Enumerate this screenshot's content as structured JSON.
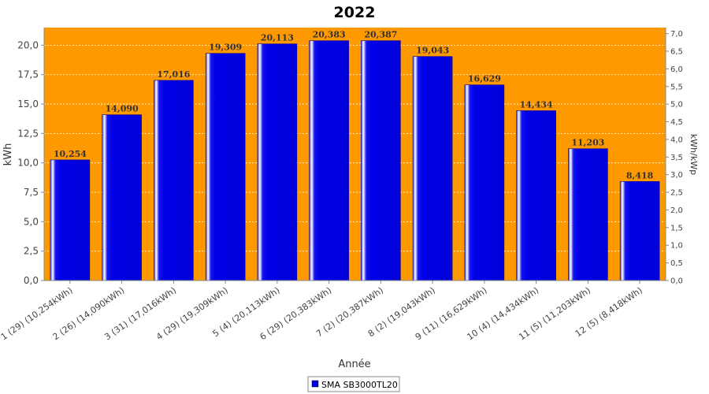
{
  "chart_data": {
    "type": "bar",
    "title": "2022",
    "xlabel": "Année",
    "ylabel": "kWh",
    "ylabel_right": "kWh/kWp",
    "ylim": [
      0,
      21.5
    ],
    "ylim_right": [
      0,
      7.17
    ],
    "yticks": [
      "0,0",
      "2,5",
      "5,0",
      "7,5",
      "10,0",
      "12,5",
      "15,0",
      "17,5",
      "20,0"
    ],
    "yticks_right": [
      "0,0",
      "0,5",
      "1,0",
      "1,5",
      "2,0",
      "2,5",
      "3,0",
      "3,5",
      "4,0",
      "4,5",
      "5,0",
      "5,5",
      "6,0",
      "6,5",
      "7,0"
    ],
    "grid": true,
    "legend_position": "bottom",
    "categories": [
      "1 (29)  (10,254kWh)",
      "2 (26)  (14,090kWh)",
      "3 (31)  (17,016kWh)",
      "4 (29)  (19,309kWh)",
      "5 (4)  (20,113kWh)",
      "6 (29)  (20,383kWh)",
      "7 (2)  (20,387kWh)",
      "8 (2)  (19,043kWh)",
      "9 (11)  (16,629kWh)",
      "10 (4)  (14,434kWh)",
      "11 (5)  (11,203kWh)",
      "12 (5)  (8,418kWh)"
    ],
    "series": [
      {
        "name": "SMA SB3000TL20",
        "values": [
          10.254,
          14.09,
          17.016,
          19.309,
          20.113,
          20.383,
          20.387,
          19.043,
          16.629,
          14.434,
          11.203,
          8.418
        ],
        "data_labels": [
          "10,254",
          "14,090",
          "17,016",
          "19,309",
          "20,113",
          "20,383",
          "20,387",
          "19,043",
          "16,629",
          "14,434",
          "11,203",
          "8,418"
        ]
      }
    ],
    "colors": {
      "plot_background": "#ff9900",
      "bar": "#0000e6",
      "bar_highlight": "#ffffff",
      "grid": "#ffffff"
    }
  }
}
